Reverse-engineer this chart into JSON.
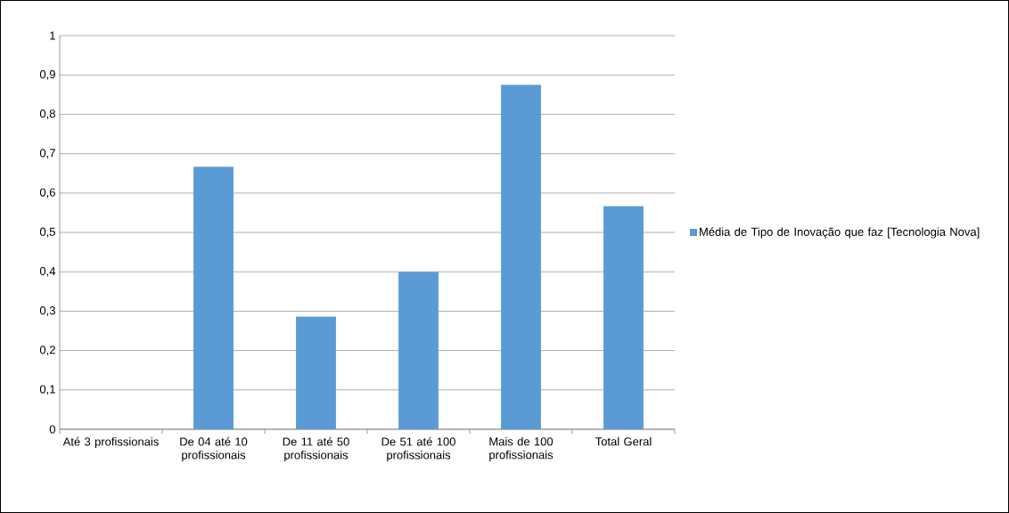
{
  "chart_data": {
    "type": "bar",
    "categories": [
      "Até 3 profissionais",
      "De 04 até 10 profissionais",
      "De 11 até 50 profissionais",
      "De 51 até 100 profissionais",
      "Mais de 100 profissionais",
      "Total Geral"
    ],
    "series": [
      {
        "name": "Média de Tipo de Inovação que faz [Tecnologia Nova]",
        "color": "#5b9bd5",
        "values": [
          0,
          0.667,
          0.286,
          0.4,
          0.875,
          0.567
        ]
      }
    ],
    "ylim": [
      0,
      1
    ],
    "yticks": [
      0,
      {
        "value": 0.1,
        "label": "0,1"
      },
      {
        "value": 0.2,
        "label": "0,2"
      },
      {
        "value": 0.3,
        "label": "0,3"
      },
      {
        "value": 0.4,
        "label": "0,4"
      },
      {
        "value": 0.5,
        "label": "0,5"
      },
      {
        "value": 0.6,
        "label": "0,6"
      },
      {
        "value": 0.7,
        "label": "0,7"
      },
      {
        "value": 0.8,
        "label": "0,8"
      },
      {
        "value": 0.9,
        "label": "0,9"
      },
      1
    ],
    "grid": "y",
    "legend": "right"
  }
}
